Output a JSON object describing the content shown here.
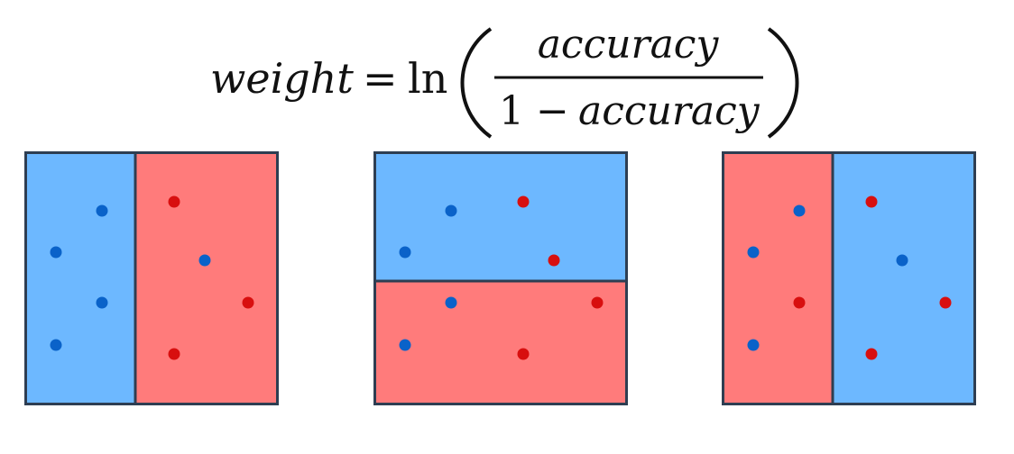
{
  "formula": {
    "lhs": "weight",
    "equals": "=",
    "ln": "ln",
    "numerator": "accuracy",
    "denominator_one": "1",
    "minus": "−",
    "denominator_term": "accuracy"
  },
  "colors": {
    "blue_region": "#6db8ff",
    "red_region": "#ff7b7b",
    "blue_point": "#0a62c9",
    "red_point": "#d80f0f",
    "border": "#2e3e52"
  },
  "panels": [
    {
      "name": "vertical-split-left-blue",
      "regions": [
        "blue",
        "red"
      ],
      "points": [
        {
          "c": "blue"
        },
        {
          "c": "blue"
        },
        {
          "c": "blue"
        },
        {
          "c": "blue"
        },
        {
          "c": "red"
        },
        {
          "c": "blue"
        },
        {
          "c": "red"
        },
        {
          "c": "red"
        }
      ]
    },
    {
      "name": "horizontal-split-top-blue",
      "regions": [
        "blue",
        "red"
      ],
      "points": [
        {
          "c": "blue"
        },
        {
          "c": "red"
        },
        {
          "c": "blue"
        },
        {
          "c": "red"
        },
        {
          "c": "blue"
        },
        {
          "c": "red"
        },
        {
          "c": "blue"
        },
        {
          "c": "red"
        }
      ]
    },
    {
      "name": "vertical-split-left-red",
      "regions": [
        "red",
        "blue"
      ],
      "points": [
        {
          "c": "blue"
        },
        {
          "c": "blue"
        },
        {
          "c": "red"
        },
        {
          "c": "blue"
        },
        {
          "c": "red"
        },
        {
          "c": "blue"
        },
        {
          "c": "red"
        },
        {
          "c": "red"
        }
      ]
    }
  ]
}
